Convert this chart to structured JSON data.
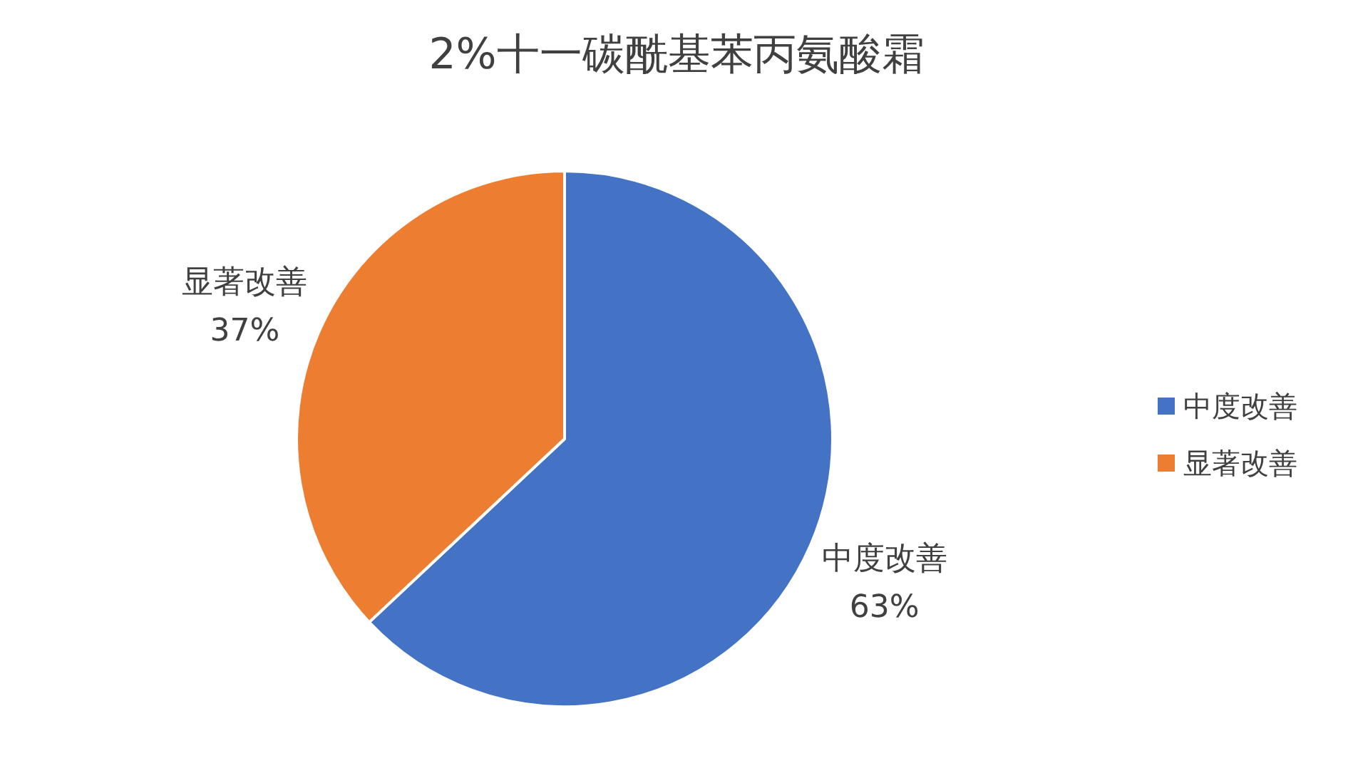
{
  "chart_data": {
    "type": "pie",
    "title": "2%十一碳酰基苯丙氨酸霜",
    "categories": [
      "中度改善",
      "显著改善"
    ],
    "values": [
      63,
      37
    ],
    "colors": [
      "#4472c4",
      "#ed7d31"
    ],
    "value_labels": [
      "63%",
      "37%"
    ],
    "legend": "right"
  }
}
